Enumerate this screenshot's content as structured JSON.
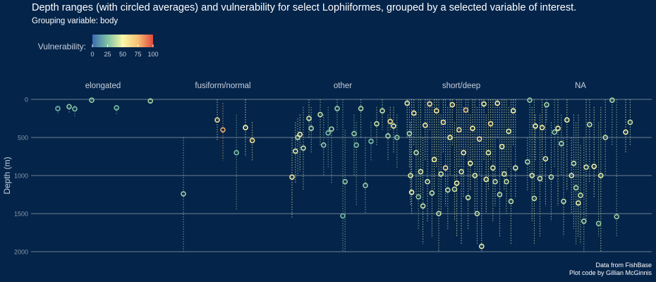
{
  "chart_data": {
    "type": "scatter",
    "title": "Depth ranges (with circled averages) and vulnerability for select Lophiiformes, grouped by a selected variable of interest.",
    "subtitle": "Grouping variable: body",
    "ylabel": "Depth (m)",
    "ylim": [
      2000,
      0
    ],
    "y_reversed": true,
    "y_ticks": [
      0,
      500,
      1000,
      1500,
      2000
    ],
    "grid": true,
    "legend": {
      "title": "Vulnerability:",
      "placement": "top-left",
      "ticks": [
        0,
        25,
        50,
        75,
        100
      ],
      "colors": [
        "#3b6bb2",
        "#7fc2a4",
        "#f7f7a8",
        "#f7c074",
        "#e0493e"
      ]
    },
    "facets": [
      {
        "label": "elongated",
        "points": [
          {
            "x": 0.1,
            "min": 100,
            "max": 200,
            "avg": 120,
            "v": 20
          },
          {
            "x": 0.2,
            "min": 60,
            "max": 180,
            "avg": 95,
            "v": 30
          },
          {
            "x": 0.25,
            "min": 80,
            "max": 220,
            "avg": 125,
            "v": 25
          },
          {
            "x": 0.4,
            "min": 0,
            "max": 60,
            "avg": 10,
            "v": 30
          },
          {
            "x": 0.62,
            "min": 80,
            "max": 200,
            "avg": 110,
            "v": 25
          },
          {
            "x": 0.92,
            "min": 0,
            "max": 60,
            "avg": 20,
            "v": 35
          }
        ]
      },
      {
        "label": "fusiform/normal",
        "points": [
          {
            "x": 0.15,
            "min": 500,
            "max": 2000,
            "avg": 1240,
            "v": 30
          },
          {
            "x": 0.45,
            "min": 0,
            "max": 550,
            "avg": 270,
            "v": 60
          },
          {
            "x": 0.5,
            "min": 50,
            "max": 800,
            "avg": 400,
            "v": 80
          },
          {
            "x": 0.62,
            "min": 200,
            "max": 1450,
            "avg": 700,
            "v": 25
          },
          {
            "x": 0.7,
            "min": 0,
            "max": 750,
            "avg": 370,
            "v": 50
          },
          {
            "x": 0.76,
            "min": 300,
            "max": 800,
            "avg": 540,
            "v": 60
          }
        ]
      },
      {
        "label": "other",
        "points": [
          {
            "x": 0.05,
            "min": 500,
            "max": 1550,
            "avg": 1020,
            "v": 55
          },
          {
            "x": 0.08,
            "min": 300,
            "max": 1100,
            "avg": 680,
            "v": 45
          },
          {
            "x": 0.1,
            "min": 250,
            "max": 1000,
            "avg": 500,
            "v": 35
          },
          {
            "x": 0.12,
            "min": 200,
            "max": 950,
            "avg": 460,
            "v": 50
          },
          {
            "x": 0.15,
            "min": 100,
            "max": 1200,
            "avg": 640,
            "v": 40
          },
          {
            "x": 0.2,
            "min": 0,
            "max": 500,
            "avg": 250,
            "v": 45
          },
          {
            "x": 0.22,
            "min": 100,
            "max": 700,
            "avg": 380,
            "v": 35
          },
          {
            "x": 0.3,
            "min": 0,
            "max": 600,
            "avg": 200,
            "v": 40
          },
          {
            "x": 0.33,
            "min": 200,
            "max": 1000,
            "avg": 600,
            "v": 30
          },
          {
            "x": 0.37,
            "min": 100,
            "max": 900,
            "avg": 440,
            "v": 25
          },
          {
            "x": 0.4,
            "min": 400,
            "max": 1100,
            "avg": 390,
            "v": 35
          },
          {
            "x": 0.45,
            "min": 0,
            "max": 400,
            "avg": 120,
            "v": 30
          },
          {
            "x": 0.5,
            "min": 0,
            "max": 2000,
            "avg": 1530,
            "v": 25
          },
          {
            "x": 0.52,
            "min": 400,
            "max": 2000,
            "avg": 1080,
            "v": 30
          },
          {
            "x": 0.6,
            "min": 200,
            "max": 1000,
            "avg": 450,
            "v": 30
          },
          {
            "x": 0.62,
            "min": 300,
            "max": 1400,
            "avg": 600,
            "v": 25
          },
          {
            "x": 0.66,
            "min": 0,
            "max": 500,
            "avg": 120,
            "v": 35
          },
          {
            "x": 0.7,
            "min": 500,
            "max": 1500,
            "avg": 1130,
            "v": 30
          },
          {
            "x": 0.75,
            "min": 300,
            "max": 800,
            "avg": 550,
            "v": 25
          },
          {
            "x": 0.8,
            "min": 100,
            "max": 600,
            "avg": 320,
            "v": 40
          },
          {
            "x": 0.85,
            "min": 0,
            "max": 400,
            "avg": 150,
            "v": 40
          },
          {
            "x": 0.9,
            "min": 200,
            "max": 800,
            "avg": 480,
            "v": 35
          },
          {
            "x": 0.92,
            "min": 100,
            "max": 400,
            "avg": 290,
            "v": 60
          },
          {
            "x": 0.95,
            "min": 100,
            "max": 700,
            "avg": 350,
            "v": 45
          },
          {
            "x": 0.98,
            "min": 200,
            "max": 900,
            "avg": 500,
            "v": 30
          }
        ]
      },
      {
        "label": "short/deep",
        "points": [
          {
            "x": 0.02,
            "min": 0,
            "max": 500,
            "avg": 50,
            "v": 45
          },
          {
            "x": 0.04,
            "min": 0,
            "max": 900,
            "avg": 450,
            "v": 35
          },
          {
            "x": 0.05,
            "min": 300,
            "max": 1400,
            "avg": 1000,
            "v": 45
          },
          {
            "x": 0.06,
            "min": 0,
            "max": 1500,
            "avg": 1220,
            "v": 50
          },
          {
            "x": 0.08,
            "min": 0,
            "max": 600,
            "avg": 180,
            "v": 55
          },
          {
            "x": 0.1,
            "min": 200,
            "max": 1300,
            "avg": 700,
            "v": 40
          },
          {
            "x": 0.12,
            "min": 0,
            "max": 1700,
            "avg": 1280,
            "v": 30
          },
          {
            "x": 0.14,
            "min": 0,
            "max": 1300,
            "avg": 950,
            "v": 45
          },
          {
            "x": 0.16,
            "min": 500,
            "max": 1900,
            "avg": 1400,
            "v": 40
          },
          {
            "x": 0.18,
            "min": 0,
            "max": 800,
            "avg": 340,
            "v": 55
          },
          {
            "x": 0.2,
            "min": 0,
            "max": 1600,
            "avg": 1080,
            "v": 45
          },
          {
            "x": 0.22,
            "min": 0,
            "max": 400,
            "avg": 60,
            "v": 60
          },
          {
            "x": 0.24,
            "min": 100,
            "max": 1800,
            "avg": 1230,
            "v": 40
          },
          {
            "x": 0.26,
            "min": 0,
            "max": 1200,
            "avg": 790,
            "v": 50
          },
          {
            "x": 0.28,
            "min": 0,
            "max": 900,
            "avg": 150,
            "v": 60
          },
          {
            "x": 0.3,
            "min": 0,
            "max": 2000,
            "avg": 1500,
            "v": 40
          },
          {
            "x": 0.32,
            "min": 200,
            "max": 1500,
            "avg": 980,
            "v": 45
          },
          {
            "x": 0.34,
            "min": 0,
            "max": 700,
            "avg": 300,
            "v": 55
          },
          {
            "x": 0.36,
            "min": 0,
            "max": 1400,
            "avg": 900,
            "v": 60
          },
          {
            "x": 0.38,
            "min": 100,
            "max": 1700,
            "avg": 1190,
            "v": 40
          },
          {
            "x": 0.4,
            "min": 0,
            "max": 1000,
            "avg": 500,
            "v": 50
          },
          {
            "x": 0.42,
            "min": 0,
            "max": 600,
            "avg": 70,
            "v": 55
          },
          {
            "x": 0.44,
            "min": 300,
            "max": 1600,
            "avg": 1180,
            "v": 40
          },
          {
            "x": 0.46,
            "min": 0,
            "max": 1800,
            "avg": 1100,
            "v": 50
          },
          {
            "x": 0.48,
            "min": 0,
            "max": 900,
            "avg": 400,
            "v": 60
          },
          {
            "x": 0.5,
            "min": 0,
            "max": 1900,
            "avg": 950,
            "v": 45
          },
          {
            "x": 0.52,
            "min": 100,
            "max": 1300,
            "avg": 700,
            "v": 55
          },
          {
            "x": 0.54,
            "min": 0,
            "max": 700,
            "avg": 140,
            "v": 70
          },
          {
            "x": 0.56,
            "min": 0,
            "max": 1700,
            "avg": 1290,
            "v": 40
          },
          {
            "x": 0.58,
            "min": 200,
            "max": 1200,
            "avg": 840,
            "v": 50
          },
          {
            "x": 0.6,
            "min": 0,
            "max": 800,
            "avg": 380,
            "v": 55
          },
          {
            "x": 0.62,
            "min": 0,
            "max": 1500,
            "avg": 1000,
            "v": 45
          },
          {
            "x": 0.64,
            "min": 100,
            "max": 1900,
            "avg": 1500,
            "v": 40
          },
          {
            "x": 0.66,
            "min": 0,
            "max": 1000,
            "avg": 520,
            "v": 60
          },
          {
            "x": 0.68,
            "min": 0,
            "max": 2000,
            "avg": 1930,
            "v": 45
          },
          {
            "x": 0.7,
            "min": 0,
            "max": 800,
            "avg": 60,
            "v": 55
          },
          {
            "x": 0.72,
            "min": 200,
            "max": 1500,
            "avg": 1050,
            "v": 50
          },
          {
            "x": 0.74,
            "min": 0,
            "max": 1200,
            "avg": 700,
            "v": 45
          },
          {
            "x": 0.76,
            "min": 0,
            "max": 800,
            "avg": 320,
            "v": 60
          },
          {
            "x": 0.78,
            "min": 0,
            "max": 1600,
            "avg": 900,
            "v": 45
          },
          {
            "x": 0.8,
            "min": 0,
            "max": 1400,
            "avg": 1080,
            "v": 40
          },
          {
            "x": 0.82,
            "min": 0,
            "max": 500,
            "avg": 50,
            "v": 55
          },
          {
            "x": 0.84,
            "min": 100,
            "max": 1800,
            "avg": 1250,
            "v": 40
          },
          {
            "x": 0.86,
            "min": 0,
            "max": 1000,
            "avg": 620,
            "v": 50
          },
          {
            "x": 0.88,
            "min": 0,
            "max": 1200,
            "avg": 980,
            "v": 45
          },
          {
            "x": 0.9,
            "min": 0,
            "max": 1500,
            "avg": 1080,
            "v": 40
          },
          {
            "x": 0.92,
            "min": 100,
            "max": 900,
            "avg": 420,
            "v": 45
          },
          {
            "x": 0.94,
            "min": 0,
            "max": 1900,
            "avg": 1340,
            "v": 40
          },
          {
            "x": 0.96,
            "min": 0,
            "max": 600,
            "avg": 150,
            "v": 50
          },
          {
            "x": 0.98,
            "min": 0,
            "max": 1300,
            "avg": 900,
            "v": 45
          }
        ]
      },
      {
        "label": "NA",
        "points": [
          {
            "x": 0.03,
            "min": 500,
            "max": 1200,
            "avg": 820,
            "v": 35
          },
          {
            "x": 0.05,
            "min": 0,
            "max": 1000,
            "avg": 10,
            "v": 30
          },
          {
            "x": 0.07,
            "min": 100,
            "max": 1600,
            "avg": 1000,
            "v": 45
          },
          {
            "x": 0.09,
            "min": 0,
            "max": 1900,
            "avg": 1300,
            "v": 40
          },
          {
            "x": 0.1,
            "min": 200,
            "max": 800,
            "avg": 350,
            "v": 50
          },
          {
            "x": 0.14,
            "min": 200,
            "max": 1800,
            "avg": 1040,
            "v": 40
          },
          {
            "x": 0.16,
            "min": 0,
            "max": 1100,
            "avg": 370,
            "v": 55
          },
          {
            "x": 0.19,
            "min": 100,
            "max": 1400,
            "avg": 780,
            "v": 45
          },
          {
            "x": 0.2,
            "min": 0,
            "max": 300,
            "avg": 70,
            "v": 35
          },
          {
            "x": 0.24,
            "min": 300,
            "max": 1600,
            "avg": 1020,
            "v": 40
          },
          {
            "x": 0.27,
            "min": 0,
            "max": 900,
            "avg": 430,
            "v": 30
          },
          {
            "x": 0.3,
            "min": 0,
            "max": 1400,
            "avg": 380,
            "v": 55
          },
          {
            "x": 0.33,
            "min": 200,
            "max": 1000,
            "avg": 580,
            "v": 35
          },
          {
            "x": 0.35,
            "min": 500,
            "max": 1800,
            "avg": 1340,
            "v": 40
          },
          {
            "x": 0.38,
            "min": 0,
            "max": 1200,
            "avg": 270,
            "v": 50
          },
          {
            "x": 0.42,
            "min": 500,
            "max": 1500,
            "avg": 1000,
            "v": 45
          },
          {
            "x": 0.44,
            "min": 200,
            "max": 1700,
            "avg": 840,
            "v": 40
          },
          {
            "x": 0.46,
            "min": 300,
            "max": 1900,
            "avg": 1160,
            "v": 35
          },
          {
            "x": 0.48,
            "min": 200,
            "max": 1800,
            "avg": 1360,
            "v": 45
          },
          {
            "x": 0.5,
            "min": 600,
            "max": 1900,
            "avg": 1260,
            "v": 40
          },
          {
            "x": 0.53,
            "min": 500,
            "max": 2000,
            "avg": 1600,
            "v": 35
          },
          {
            "x": 0.55,
            "min": 0,
            "max": 1600,
            "avg": 890,
            "v": 45
          },
          {
            "x": 0.58,
            "min": 0,
            "max": 1100,
            "avg": 330,
            "v": 40
          },
          {
            "x": 0.62,
            "min": 100,
            "max": 1300,
            "avg": 880,
            "v": 50
          },
          {
            "x": 0.66,
            "min": 300,
            "max": 1800,
            "avg": 1630,
            "v": 30
          },
          {
            "x": 0.68,
            "min": 100,
            "max": 2000,
            "avg": 1000,
            "v": 45
          },
          {
            "x": 0.72,
            "min": 0,
            "max": 1000,
            "avg": 500,
            "v": 40
          },
          {
            "x": 0.78,
            "min": 0,
            "max": 600,
            "avg": 10,
            "v": 35
          },
          {
            "x": 0.82,
            "min": 0,
            "max": 1800,
            "avg": 1540,
            "v": 30
          },
          {
            "x": 0.9,
            "min": 0,
            "max": 700,
            "avg": 430,
            "v": 55
          },
          {
            "x": 0.94,
            "min": 0,
            "max": 600,
            "avg": 300,
            "v": 40
          }
        ]
      }
    ]
  },
  "credits": {
    "line1": "Data from FishBase",
    "line2": "Plot code by Gillian McGinnis"
  }
}
